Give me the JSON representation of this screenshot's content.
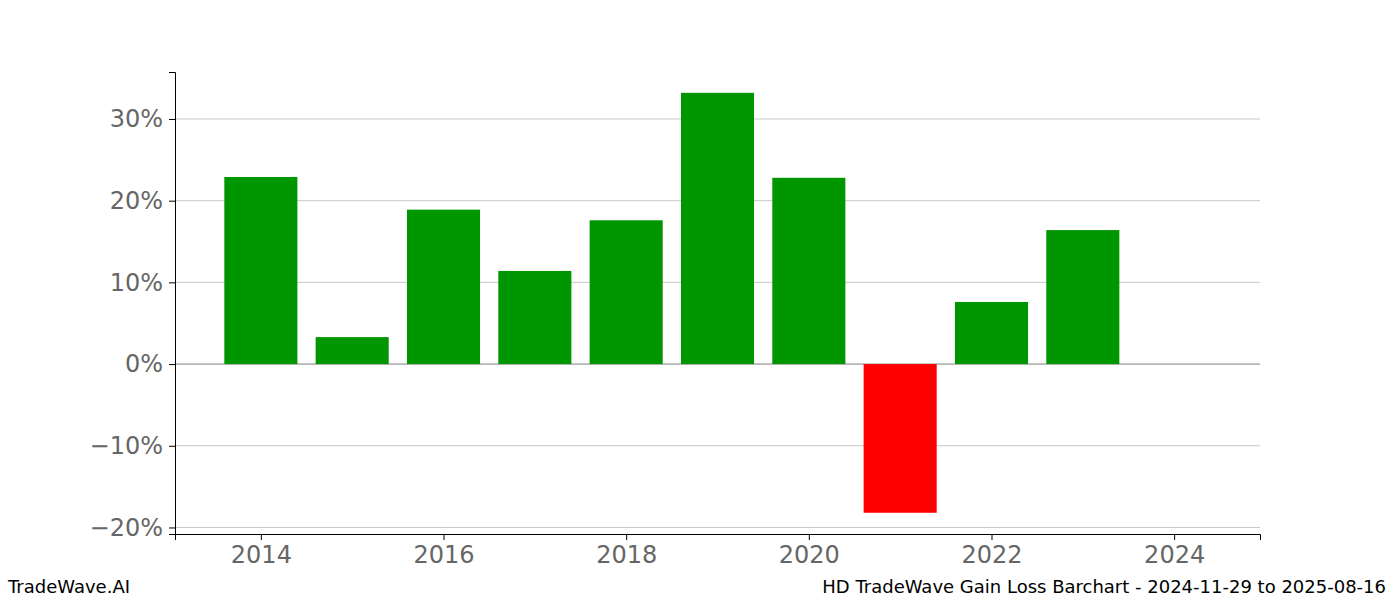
{
  "chart_data": {
    "type": "bar",
    "title": "HD TradeWave Gain Loss Barchart - 2024-11-29 to 2025-08-16",
    "annotations": [
      "TradeWave.AI"
    ],
    "x": [
      2014,
      2015,
      2016,
      2017,
      2018,
      2019,
      2020,
      2021,
      2022,
      2023
    ],
    "values": [
      22.9,
      3.3,
      18.9,
      11.4,
      17.6,
      33.2,
      22.8,
      -18.2,
      7.6,
      16.4
    ],
    "colors": [
      "#009600",
      "#009600",
      "#009600",
      "#009600",
      "#009600",
      "#009600",
      "#009600",
      "#ff0000",
      "#009600",
      "#009600"
    ],
    "xlim": [
      2013.06,
      2024.94
    ],
    "xticks": [
      2014,
      2016,
      2018,
      2020,
      2022,
      2024
    ],
    "ylim": [
      -20.8,
      35.75
    ],
    "yticks": [
      {
        "value": -20,
        "label": "−20%"
      },
      {
        "value": -10,
        "label": "−10%"
      },
      {
        "value": 0,
        "label": "0%"
      },
      {
        "value": 10,
        "label": "10%"
      },
      {
        "value": 20,
        "label": "20%"
      },
      {
        "value": 30,
        "label": "30%"
      }
    ],
    "grid": true
  }
}
